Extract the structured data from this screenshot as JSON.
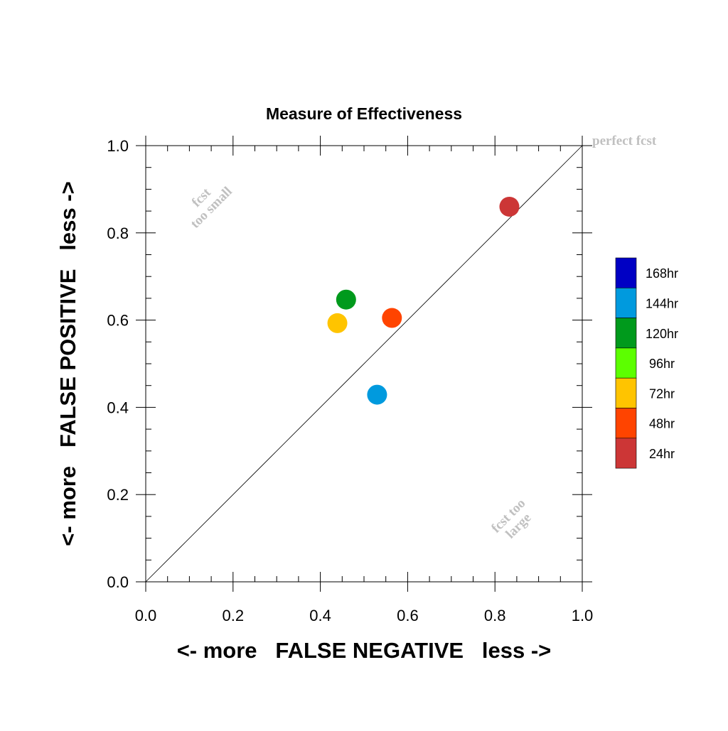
{
  "chart_data": {
    "type": "scatter",
    "title": "Measure of Effectiveness",
    "xlabel": "<- more   FALSE NEGATIVE   less ->",
    "ylabel": "<- more   FALSE POSITIVE   less ->",
    "xlim": [
      0.0,
      1.0
    ],
    "ylim": [
      0.0,
      1.0
    ],
    "xticks": [
      "0.0",
      "0.2",
      "0.4",
      "0.6",
      "0.8",
      "1.0"
    ],
    "yticks": [
      "0.0",
      "0.2",
      "0.4",
      "0.6",
      "0.8",
      "1.0"
    ],
    "grid": false,
    "diagonal_line": true,
    "annotations": {
      "perfect": "perfect fcst",
      "small_line1": "fcst",
      "small_line2": "too small",
      "large_line1": "fcst too",
      "large_line2": "large"
    },
    "legend": {
      "placement": "right",
      "entries": [
        {
          "label": "168hr",
          "color": "#0000c4"
        },
        {
          "label": "144hr",
          "color": "#009ade"
        },
        {
          "label": "120hr",
          "color": "#009a1c"
        },
        {
          "label": "96hr",
          "color": "#5cff00"
        },
        {
          "label": "72hr",
          "color": "#ffc400"
        },
        {
          "label": "48hr",
          "color": "#ff4400"
        },
        {
          "label": "24hr",
          "color": "#cc3636"
        }
      ]
    },
    "points": [
      {
        "series": "24hr",
        "x": 0.833,
        "y": 0.86,
        "color": "#cc3636"
      },
      {
        "series": "48hr",
        "x": 0.564,
        "y": 0.605,
        "color": "#ff4400"
      },
      {
        "series": "72hr",
        "x": 0.439,
        "y": 0.593,
        "color": "#ffc400"
      },
      {
        "series": "120hr",
        "x": 0.459,
        "y": 0.647,
        "color": "#009a1c"
      },
      {
        "series": "144hr",
        "x": 0.53,
        "y": 0.429,
        "color": "#009ade"
      }
    ]
  }
}
